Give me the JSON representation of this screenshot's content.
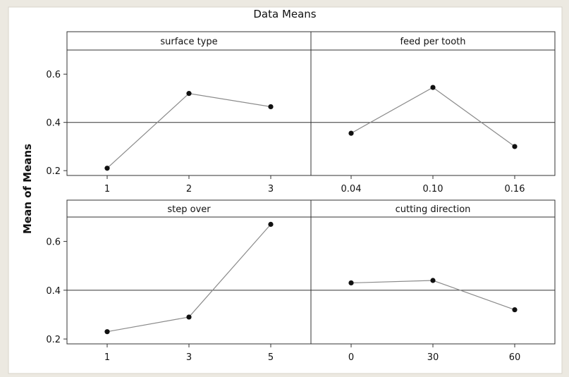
{
  "chart_data": {
    "type": "line",
    "title": "Data Means",
    "ylabel": "Mean of Means",
    "ylim": [
      0.18,
      0.7
    ],
    "yticks": [
      "0.2",
      "0.4",
      "0.6"
    ],
    "reference_line": 0.4,
    "panels": [
      {
        "name": "surface type",
        "categories": [
          "1",
          "2",
          "3"
        ],
        "values": [
          0.21,
          0.52,
          0.465
        ]
      },
      {
        "name": "feed per tooth",
        "categories": [
          "0.04",
          "0.10",
          "0.16"
        ],
        "values": [
          0.355,
          0.545,
          0.3
        ]
      },
      {
        "name": "step over",
        "categories": [
          "1",
          "3",
          "5"
        ],
        "values": [
          0.23,
          0.29,
          0.67
        ]
      },
      {
        "name": "cutting direction",
        "categories": [
          "0",
          "30",
          "60"
        ],
        "values": [
          0.43,
          0.44,
          0.32
        ]
      }
    ]
  }
}
